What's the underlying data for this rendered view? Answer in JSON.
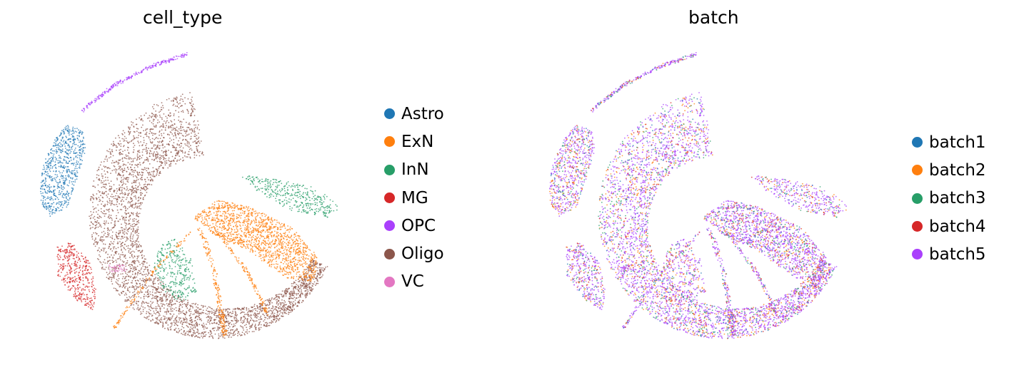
{
  "chart_data": [
    {
      "type": "scatter",
      "title": "cell_type",
      "xlabel": "",
      "ylabel": "",
      "axes_visible": false,
      "legend_placement": "right",
      "legend": [
        {
          "label": "Astro",
          "color": "#1f77b4"
        },
        {
          "label": "ExN",
          "color": "#ff7f0e"
        },
        {
          "label": "InN",
          "color": "#279e68"
        },
        {
          "label": "MG",
          "color": "#d62728"
        },
        {
          "label": "OPC",
          "color": "#aa40fc"
        },
        {
          "label": "Oligo",
          "color": "#8c564b"
        },
        {
          "label": "VC",
          "color": "#e377c2"
        }
      ]
    },
    {
      "type": "scatter",
      "title": "batch",
      "xlabel": "",
      "ylabel": "",
      "axes_visible": false,
      "legend_placement": "right",
      "legend": [
        {
          "label": "batch1",
          "color": "#1f77b4"
        },
        {
          "label": "batch2",
          "color": "#ff7f0e"
        },
        {
          "label": "batch3",
          "color": "#279e68"
        },
        {
          "label": "batch4",
          "color": "#d62728"
        },
        {
          "label": "batch5",
          "color": "#aa40fc"
        }
      ]
    }
  ]
}
